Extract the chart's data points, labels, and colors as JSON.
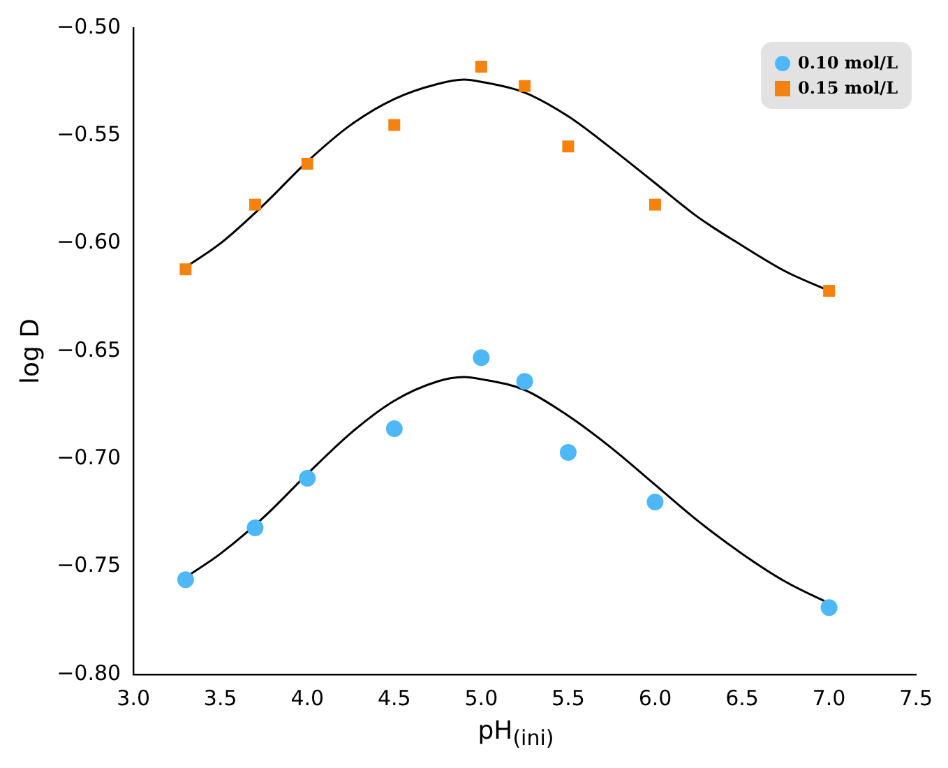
{
  "chart_data": {
    "type": "scatter",
    "xlabel": "pH$_{(ini)}$",
    "ylabel": "log D",
    "xlim": [
      3.0,
      7.5
    ],
    "xticks": [
      {
        "value": 3,
        "label": "3.0"
      },
      3.5,
      {
        "value": 4,
        "label": "4.0"
      },
      4.5,
      {
        "value": 5,
        "label": "5.0"
      },
      5.5,
      {
        "value": 6,
        "label": "6.0"
      },
      6.5,
      {
        "value": 7,
        "label": "7.0"
      },
      7.5
    ],
    "ylim": [
      -0.8,
      -0.5
    ],
    "yticks": [
      {
        "value": -0.8,
        "label": "−0.80"
      },
      {
        "value": -0.75,
        "label": "−0.75"
      },
      {
        "value": -0.7,
        "label": "−0.70"
      },
      {
        "value": -0.65,
        "label": "−0.65"
      },
      {
        "value": -0.6,
        "label": "−0.60"
      },
      {
        "value": -0.55,
        "label": "−0.55"
      },
      {
        "value": -0.5,
        "label": "−0.50"
      }
    ],
    "grid": false,
    "legend": "top right",
    "series": [
      {
        "name": "0.10 mol/L",
        "color": "#4db8f5",
        "marker": "circle",
        "x": [
          3.3,
          3.7,
          4.0,
          4.5,
          5.0,
          5.25,
          5.5,
          6.0,
          7.0
        ],
        "values": [
          -0.756,
          -0.732,
          -0.709,
          -0.686,
          -0.653,
          -0.664,
          -0.697,
          -0.72,
          -0.769
        ]
      },
      {
        "name": "0.15 mol/L",
        "color": "#f5820f",
        "marker": "square",
        "x": [
          3.3,
          3.7,
          4.0,
          4.5,
          5.0,
          5.25,
          5.5,
          6.0,
          7.0
        ],
        "values": [
          -0.612,
          -0.582,
          -0.563,
          -0.545,
          -0.518,
          -0.527,
          -0.555,
          -0.582,
          -0.622
        ]
      },
      {
        "type": "line",
        "color": "#000000",
        "marker": "none",
        "x": [
          3.3,
          3.5,
          3.75,
          4.0,
          4.25,
          4.5,
          4.75,
          4.9,
          5.0,
          5.25,
          5.5,
          5.75,
          6.0,
          6.25,
          6.5,
          6.75,
          7.0
        ],
        "values": [
          -0.755,
          -0.744,
          -0.727,
          -0.707,
          -0.688,
          -0.673,
          -0.664,
          -0.662,
          -0.663,
          -0.668,
          -0.68,
          -0.695,
          -0.712,
          -0.729,
          -0.744,
          -0.757,
          -0.767
        ]
      },
      {
        "type": "line",
        "color": "#000000",
        "marker": "none",
        "x": [
          3.3,
          3.5,
          3.75,
          4.0,
          4.25,
          4.5,
          4.75,
          4.9,
          5.0,
          5.25,
          5.5,
          5.75,
          6.0,
          6.25,
          6.5,
          6.75,
          7.0
        ],
        "values": [
          -0.611,
          -0.6,
          -0.582,
          -0.562,
          -0.545,
          -0.533,
          -0.526,
          -0.524,
          -0.525,
          -0.53,
          -0.541,
          -0.556,
          -0.572,
          -0.588,
          -0.601,
          -0.613,
          -0.622
        ]
      }
    ]
  }
}
